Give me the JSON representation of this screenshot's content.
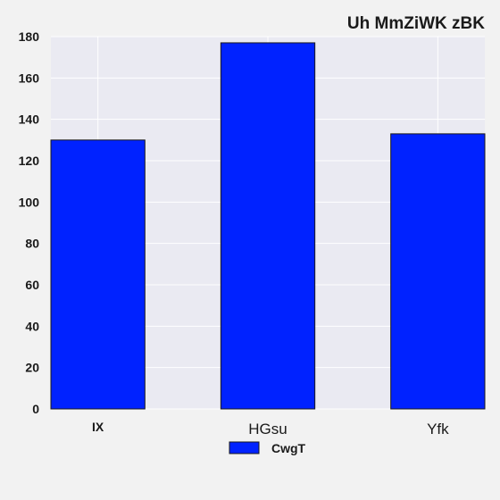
{
  "chart_data": {
    "type": "bar",
    "title": "Uh MmZiWK zBK",
    "categories": [
      "IX",
      "HGsu",
      "Yfk"
    ],
    "series": [
      {
        "name": "CwgT",
        "values": [
          130,
          177,
          133
        ],
        "color": "#0022ff"
      }
    ],
    "xlabel": "",
    "ylabel": "",
    "ylim": [
      0,
      180
    ],
    "yticks": [
      0,
      20,
      40,
      60,
      80,
      100,
      120,
      140,
      160,
      180
    ],
    "grid": true,
    "legend_position": "bottom-center",
    "colors": {
      "plot_background": "#eaeaf2",
      "page_background": "#f2f2f2",
      "gridline": "#ffffff",
      "bar_edge": "#1a1a1a"
    }
  }
}
